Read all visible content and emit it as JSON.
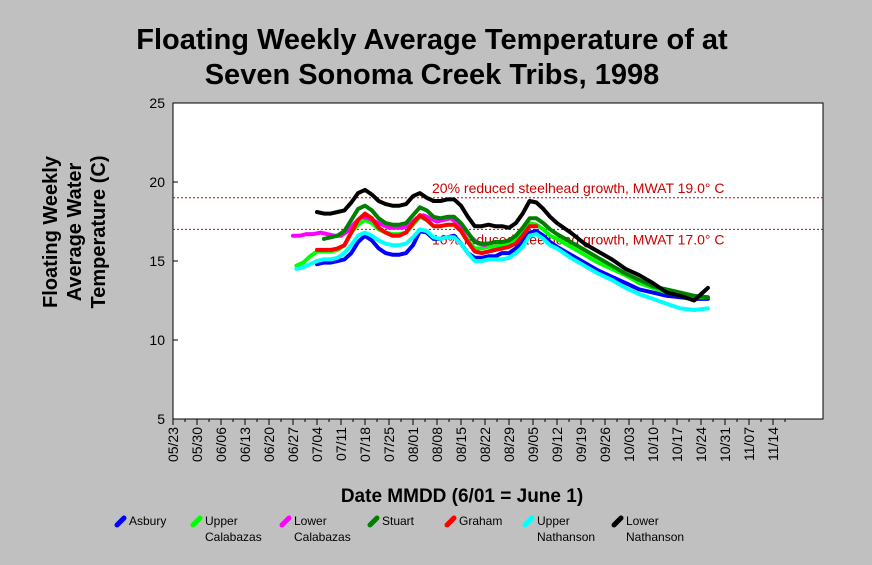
{
  "chart_data": {
    "type": "line",
    "title": [
      "Floating Weekly Average Temperature of at",
      "Seven Sonoma Creek Tribs, 1998"
    ],
    "ylabel": [
      "Floating Weekly",
      "Average Water",
      "Temperature (C)"
    ],
    "xlabel": "Date MMDD (6/01 = June 1)",
    "ylim": [
      5,
      25
    ],
    "yticks": [
      5,
      10,
      15,
      20,
      25
    ],
    "x_tick_labels": [
      "05/23",
      "05/30",
      "06/06",
      "06/13",
      "06/20",
      "06/27",
      "07/04",
      "07/11",
      "07/18",
      "07/25",
      "08/01",
      "08/08",
      "08/15",
      "08/22",
      "08/29",
      "09/05",
      "09/12",
      "09/19",
      "09/26",
      "10/03",
      "10/10",
      "10/17",
      "10/24",
      "10/31",
      "11/07",
      "11/14"
    ],
    "grid": false,
    "legend_position": "bottom",
    "reference_lines": [
      {
        "value": 19.0,
        "label": "20% reduced steelhead growth, MWAT 19.0° C",
        "color": "#cc0000"
      },
      {
        "value": 17.0,
        "label": "10% reduced steelhead growth, MWAT 17.0° C",
        "color": "#cc0000"
      }
    ],
    "series": [
      {
        "name": "Asbury",
        "legend_lines": [
          "Asbury"
        ],
        "color": "#0000ff",
        "x": [
          "07/04",
          "07/06",
          "07/08",
          "07/10",
          "07/12",
          "07/14",
          "07/16",
          "07/18",
          "07/20",
          "07/22",
          "07/24",
          "07/26",
          "07/28",
          "07/30",
          "08/01",
          "08/03",
          "08/05",
          "08/07",
          "08/09",
          "08/11",
          "08/13",
          "08/15",
          "08/17",
          "08/19",
          "08/21",
          "08/23",
          "08/25",
          "08/27",
          "08/29",
          "08/31",
          "09/02",
          "09/04",
          "09/06",
          "09/08",
          "09/10",
          "09/12",
          "09/16",
          "09/20",
          "09/24",
          "09/28",
          "10/02",
          "10/06",
          "10/10",
          "10/14",
          "10/18",
          "10/22",
          "10/26"
        ],
        "y": [
          14.8,
          14.9,
          14.9,
          15.0,
          15.1,
          15.5,
          16.2,
          16.6,
          16.3,
          15.8,
          15.5,
          15.4,
          15.4,
          15.5,
          16.0,
          16.9,
          16.8,
          16.4,
          16.4,
          16.5,
          16.6,
          16.1,
          15.5,
          15.2,
          15.2,
          15.3,
          15.3,
          15.5,
          15.5,
          15.8,
          16.3,
          16.8,
          16.9,
          16.6,
          16.2,
          15.9,
          15.4,
          14.9,
          14.4,
          14.0,
          13.6,
          13.2,
          13.0,
          12.8,
          12.7,
          12.6,
          12.6
        ]
      },
      {
        "name": "Upper Calabazas",
        "legend_lines": [
          "Upper",
          "Calabazas"
        ],
        "color": "#00ff00",
        "x": [
          "06/28",
          "06/30",
          "07/02",
          "07/04",
          "07/06",
          "07/08",
          "07/10",
          "07/12",
          "07/14",
          "07/16",
          "07/18",
          "07/20",
          "07/22",
          "07/24",
          "07/26",
          "07/28",
          "07/30",
          "08/01",
          "08/03",
          "08/05",
          "08/07",
          "08/09",
          "08/11",
          "08/13",
          "08/15",
          "08/17",
          "08/19",
          "08/21",
          "08/23",
          "08/25",
          "08/27",
          "08/29",
          "08/31",
          "09/02",
          "09/04",
          "09/06",
          "09/08",
          "09/10",
          "09/12",
          "09/16",
          "09/20",
          "09/24",
          "09/28",
          "10/02",
          "10/06",
          "10/10",
          "10/14",
          "10/18",
          "10/22",
          "10/26"
        ],
        "y": [
          14.7,
          14.9,
          15.3,
          15.6,
          15.6,
          15.6,
          15.7,
          16.0,
          16.8,
          17.3,
          17.6,
          17.4,
          17.0,
          16.8,
          16.7,
          16.7,
          16.8,
          17.3,
          17.8,
          17.6,
          17.2,
          17.2,
          17.3,
          17.3,
          16.9,
          16.3,
          15.8,
          15.8,
          15.9,
          15.9,
          16.0,
          16.1,
          16.4,
          16.9,
          17.4,
          17.3,
          17.0,
          16.6,
          16.4,
          15.9,
          15.4,
          14.9,
          14.5,
          14.1,
          13.6,
          13.3,
          13.0,
          12.8,
          12.7,
          12.7
        ]
      },
      {
        "name": "Lower Calabazas",
        "legend_lines": [
          "Lower",
          "Calabazas"
        ],
        "color": "#ff00ff",
        "x": [
          "06/27",
          "06/29",
          "07/01",
          "07/03",
          "07/05",
          "07/07",
          "07/09",
          "07/11",
          "07/13",
          "07/15",
          "07/17",
          "07/19",
          "07/21",
          "07/23",
          "07/25",
          "07/27",
          "07/29",
          "07/31",
          "08/02",
          "08/04",
          "08/06",
          "08/08",
          "08/10",
          "08/12",
          "08/14",
          "08/16",
          "08/18",
          "08/20",
          "08/22"
        ],
        "y": [
          16.6,
          16.6,
          16.7,
          16.7,
          16.8,
          16.7,
          16.6,
          16.6,
          16.9,
          17.4,
          17.8,
          17.7,
          17.5,
          17.3,
          17.1,
          17.1,
          17.1,
          17.3,
          17.7,
          17.9,
          17.7,
          17.5,
          17.6,
          17.7,
          17.4,
          17.0,
          16.5,
          16.1,
          16.0
        ]
      },
      {
        "name": "Stuart",
        "legend_lines": [
          "Stuart"
        ],
        "color": "#008000",
        "x": [
          "07/06",
          "07/08",
          "07/10",
          "07/12",
          "07/14",
          "07/16",
          "07/18",
          "07/20",
          "07/22",
          "07/24",
          "07/26",
          "07/28",
          "07/30",
          "08/01",
          "08/03",
          "08/05",
          "08/07",
          "08/09",
          "08/11",
          "08/13",
          "08/15",
          "08/17",
          "08/19",
          "08/21",
          "08/23",
          "08/25",
          "08/27",
          "08/29",
          "08/31",
          "09/02",
          "09/04",
          "09/06",
          "09/08",
          "09/10",
          "09/12",
          "09/16",
          "09/20",
          "09/24",
          "09/28",
          "10/02",
          "10/06",
          "10/10",
          "10/14",
          "10/18",
          "10/22",
          "10/26"
        ],
        "y": [
          16.4,
          16.5,
          16.6,
          16.9,
          17.6,
          18.3,
          18.5,
          18.2,
          17.7,
          17.4,
          17.3,
          17.3,
          17.4,
          17.9,
          18.4,
          18.2,
          17.8,
          17.7,
          17.8,
          17.8,
          17.4,
          16.8,
          16.2,
          16.1,
          16.1,
          16.2,
          16.2,
          16.3,
          16.6,
          17.1,
          17.7,
          17.7,
          17.4,
          17.0,
          16.7,
          16.2,
          15.7,
          15.2,
          14.7,
          14.2,
          13.8,
          13.4,
          13.2,
          13.0,
          12.8,
          12.7
        ]
      },
      {
        "name": "Graham",
        "legend_lines": [
          "Graham"
        ],
        "color": "#ff0000",
        "x": [
          "07/04",
          "07/06",
          "07/08",
          "07/10",
          "07/12",
          "07/14",
          "07/16",
          "07/18",
          "07/20",
          "07/22",
          "07/24",
          "07/26",
          "07/28",
          "07/30",
          "08/01",
          "08/03",
          "08/05",
          "08/07",
          "08/09",
          "08/11",
          "08/13",
          "08/15",
          "08/17",
          "08/19",
          "08/21",
          "08/23",
          "08/25",
          "08/27",
          "08/29",
          "08/31",
          "09/02",
          "09/04",
          "09/06"
        ],
        "y": [
          15.7,
          15.7,
          15.7,
          15.8,
          16.0,
          16.8,
          17.6,
          18.0,
          17.7,
          17.1,
          16.8,
          16.6,
          16.6,
          16.8,
          17.4,
          17.9,
          17.6,
          17.2,
          17.2,
          17.3,
          17.3,
          16.9,
          16.2,
          15.6,
          15.5,
          15.6,
          15.7,
          15.8,
          15.9,
          16.1,
          16.6,
          17.2,
          17.2
        ]
      },
      {
        "name": "Upper Nathanson",
        "legend_lines": [
          "Upper",
          "Nathanson"
        ],
        "color": "#00ffff",
        "x": [
          "06/28",
          "06/30",
          "07/02",
          "07/04",
          "07/06",
          "07/08",
          "07/10",
          "07/12",
          "07/14",
          "07/16",
          "07/18",
          "07/20",
          "07/22",
          "07/24",
          "07/26",
          "07/28",
          "07/30",
          "08/01",
          "08/03",
          "08/05",
          "08/07",
          "08/09",
          "08/11",
          "08/13",
          "08/15",
          "08/17",
          "08/19",
          "08/21",
          "08/23",
          "08/25",
          "08/27",
          "08/29",
          "08/31",
          "09/02",
          "09/04",
          "09/06",
          "09/08",
          "09/10",
          "09/12",
          "09/16",
          "09/20",
          "09/24",
          "09/28",
          "10/02",
          "10/06",
          "10/10",
          "10/14",
          "10/18",
          "10/22",
          "10/26"
        ],
        "y": [
          14.5,
          14.6,
          14.8,
          15.0,
          15.1,
          15.1,
          15.2,
          15.5,
          16.0,
          16.6,
          16.8,
          16.6,
          16.3,
          16.1,
          16.0,
          16.0,
          16.1,
          16.5,
          17.0,
          16.9,
          16.5,
          16.4,
          16.5,
          16.5,
          16.1,
          15.5,
          15.0,
          15.0,
          15.1,
          15.1,
          15.1,
          15.2,
          15.5,
          15.9,
          16.6,
          16.7,
          16.4,
          16.0,
          15.8,
          15.2,
          14.7,
          14.2,
          13.8,
          13.3,
          12.9,
          12.6,
          12.3,
          12.0,
          11.9,
          12.0
        ]
      },
      {
        "name": "Lower Nathanson",
        "legend_lines": [
          "Lower",
          "Nathanson"
        ],
        "color": "#000000",
        "x": [
          "07/04",
          "07/06",
          "07/08",
          "07/10",
          "07/12",
          "07/14",
          "07/16",
          "07/18",
          "07/20",
          "07/22",
          "07/24",
          "07/26",
          "07/28",
          "07/30",
          "08/01",
          "08/03",
          "08/05",
          "08/07",
          "08/09",
          "08/11",
          "08/13",
          "08/15",
          "08/17",
          "08/19",
          "08/21",
          "08/23",
          "08/25",
          "08/27",
          "08/29",
          "08/31",
          "09/02",
          "09/04",
          "09/06",
          "09/08",
          "09/10",
          "09/12",
          "09/16",
          "09/20",
          "09/24",
          "09/28",
          "10/02",
          "10/06",
          "10/10",
          "10/14",
          "10/18",
          "10/22",
          "10/26"
        ],
        "y": [
          18.1,
          18.0,
          18.0,
          18.1,
          18.2,
          18.7,
          19.3,
          19.5,
          19.2,
          18.8,
          18.6,
          18.5,
          18.5,
          18.6,
          19.1,
          19.3,
          19.0,
          18.8,
          18.8,
          18.9,
          18.9,
          18.5,
          17.8,
          17.2,
          17.2,
          17.3,
          17.2,
          17.2,
          17.1,
          17.4,
          18.0,
          18.8,
          18.7,
          18.3,
          17.8,
          17.4,
          16.8,
          16.1,
          15.6,
          15.1,
          14.5,
          14.1,
          13.6,
          13.0,
          12.8,
          12.5,
          13.3
        ]
      }
    ]
  }
}
